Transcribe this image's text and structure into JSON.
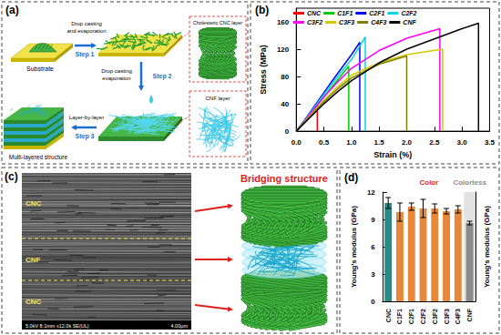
{
  "panels": {
    "a": {
      "label": "(a)",
      "substrate": "Substrate",
      "step1": {
        "text": [
          "Drop casting",
          "and evaporation"
        ],
        "step": "Step 1"
      },
      "step2": {
        "text": [
          "Drop casting",
          "evaporation"
        ],
        "step": "Step 2"
      },
      "step3": {
        "text": [
          "Layer-by-layer"
        ],
        "step": "Step 3"
      },
      "cnc_box": "Cholesteric CNC layer",
      "cnf_box": "CNF layer",
      "result": "Multi-layered structure"
    },
    "b": {
      "label": "(b)"
    },
    "c": {
      "label": "(c)",
      "sem_labels": [
        "CNC",
        "CNF",
        "CNC"
      ],
      "sem_info": "5.0kV 8.1mm x12.0k SE(UL)",
      "scale_bar": "4.00μm",
      "title": "Bridging structure"
    },
    "d": {
      "label": "(d)"
    }
  },
  "chart_data": [
    {
      "type": "line",
      "xlabel": "Strain (%)",
      "ylabel": "Stress (MPa)",
      "xlim": [
        0,
        3.5
      ],
      "xticks": [
        {
          "value": 0,
          "label": "0.0"
        },
        0.5,
        {
          "value": 1,
          "label": "1.0"
        },
        1.5,
        {
          "value": 2,
          "label": "2.0"
        },
        2.5,
        {
          "value": 3,
          "label": "3.0"
        },
        3.5
      ],
      "ylim": [
        0,
        180
      ],
      "yticks": [
        0,
        40,
        80,
        120,
        160
      ],
      "grid": false,
      "legend": "upper left",
      "series": [
        {
          "name": "CNC",
          "color": "#ff0000",
          "x": [
            0,
            0.1,
            0.2,
            0.3,
            0.38,
            0.38
          ],
          "values": [
            0,
            10,
            20,
            30,
            37,
            0
          ]
        },
        {
          "name": "C1F1",
          "color": "#00cc00",
          "x": [
            0,
            0.2,
            0.4,
            0.6,
            0.8,
            0.95,
            0.95
          ],
          "values": [
            0,
            20,
            40,
            60,
            80,
            95,
            0
          ]
        },
        {
          "name": "C2F1",
          "color": "#0000ff",
          "x": [
            0,
            0.2,
            0.4,
            0.6,
            0.8,
            1.0,
            1.15,
            1.15
          ],
          "values": [
            0,
            22,
            45,
            68,
            90,
            112,
            130,
            0
          ]
        },
        {
          "name": "C2F2",
          "color": "#00d8e0",
          "x": [
            0,
            0.2,
            0.4,
            0.6,
            0.8,
            1.0,
            1.25,
            1.25
          ],
          "values": [
            0,
            21,
            43,
            64,
            85,
            105,
            138,
            0
          ]
        },
        {
          "name": "C3F2",
          "color": "#ff00ff",
          "x": [
            0,
            0.25,
            0.5,
            0.75,
            1.0,
            1.5,
            2.0,
            2.6,
            2.6
          ],
          "values": [
            0,
            25,
            50,
            72,
            92,
            118,
            136,
            150,
            0
          ]
        },
        {
          "name": "C3F3",
          "color": "#d4c800",
          "x": [
            0,
            0.25,
            0.5,
            0.75,
            1.0,
            1.5,
            2.0,
            2.65,
            2.65
          ],
          "values": [
            0,
            23,
            45,
            65,
            82,
            100,
            112,
            120,
            0
          ]
        },
        {
          "name": "C4F3",
          "color": "#808000",
          "x": [
            0,
            0.25,
            0.5,
            0.75,
            1.0,
            1.5,
            2.0,
            2.0
          ],
          "values": [
            0,
            22,
            43,
            62,
            78,
            98,
            110,
            0
          ]
        },
        {
          "name": "CNF",
          "color": "#000000",
          "x": [
            0,
            0.25,
            0.5,
            0.75,
            1.0,
            1.5,
            2.0,
            2.5,
            3.0,
            3.3,
            3.3
          ],
          "values": [
            0,
            20,
            40,
            58,
            74,
            100,
            120,
            135,
            150,
            158,
            0
          ]
        }
      ]
    },
    {
      "type": "bar",
      "ylabel": "Young's modulus (GPa)",
      "y2label": "Young's modulus (GPa)",
      "categories": [
        "CNC",
        "C1F1",
        "C2F1",
        "C2F2",
        "C3F2",
        "C3F3",
        "C4F3",
        "CNF"
      ],
      "values": [
        10.8,
        9.8,
        10.4,
        10.2,
        10.2,
        9.9,
        10.1,
        8.6
      ],
      "errors": [
        0.6,
        1.0,
        0.4,
        1.0,
        0.5,
        0.3,
        0.4,
        0.2
      ],
      "colors": [
        "#2a8a85",
        "#e8873a",
        "#e8873a",
        "#e8873a",
        "#e8873a",
        "#e8873a",
        "#e8873a",
        "#8a8a8a"
      ],
      "ylim": [
        0,
        12
      ],
      "yticks": [
        0,
        3,
        6,
        9,
        12
      ],
      "grid": false,
      "annotations": [
        {
          "text": "Color",
          "color": "#e8231f",
          "categories": [
            "C1F1",
            "C2F1",
            "C2F2",
            "C3F2",
            "C3F3",
            "C4F3"
          ]
        },
        {
          "text": "Colorless",
          "color": "#8a8a8a",
          "categories": [
            "CNF"
          ],
          "type": "band"
        }
      ]
    }
  ]
}
